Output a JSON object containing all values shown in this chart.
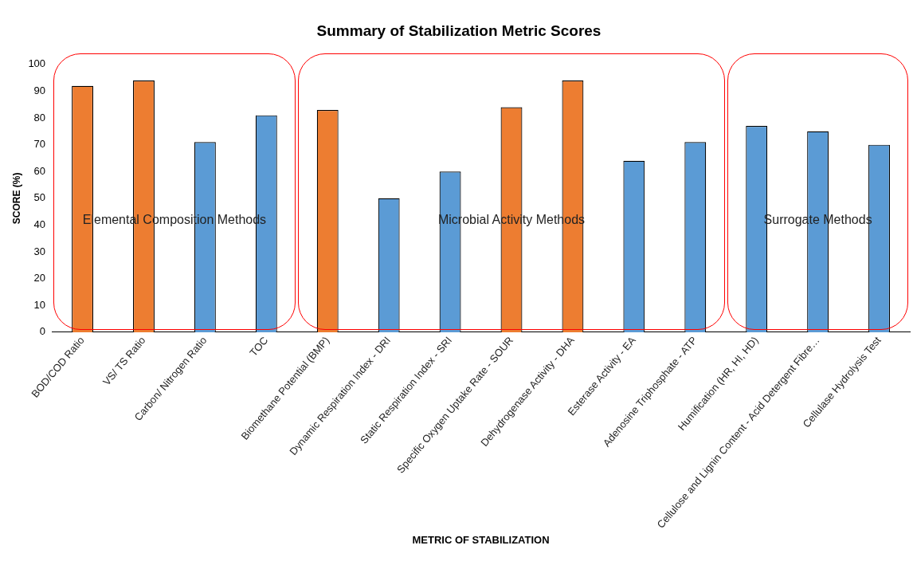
{
  "chart_data": {
    "type": "bar",
    "title": "Summary of Stabilization Metric Scores",
    "xlabel": "METRIC OF STABILIZATION",
    "ylabel": "SCORE (%)",
    "categories": [
      "BOD/COD Ratio",
      "VS/ TS Ratio",
      "Carbon/ Nitrogen Ratio",
      "TOC",
      "Biomethane Potential (BMP)",
      "Dynamic Respiration Index - DRI",
      "Static Respiration Index - SRI",
      "Specific Oxygen Uptake Rate - SOUR",
      "Dehydrogenase Activity - DHA",
      "Esterase Activity - EA",
      "Adenosine Triphosphate - ATP",
      "Humification (HR, HI, HD)",
      "Cellulose and Lignin Content - Acid Detergent Fibre…",
      "Cellulase Hydrolysis Test"
    ],
    "values": [
      92,
      94,
      71,
      81,
      83,
      50,
      60,
      84,
      94,
      64,
      71,
      77,
      75,
      70
    ],
    "colors": [
      "#ed7d31",
      "#ed7d31",
      "#5b9bd5",
      "#5b9bd5",
      "#ed7d31",
      "#5b9bd5",
      "#5b9bd5",
      "#ed7d31",
      "#ed7d31",
      "#5b9bd5",
      "#5b9bd5",
      "#5b9bd5",
      "#5b9bd5",
      "#5b9bd5"
    ],
    "ylim": [
      0,
      100
    ],
    "yticks": [
      0,
      10,
      20,
      30,
      40,
      50,
      60,
      70,
      80,
      90,
      100
    ],
    "annotations": [
      "Elemental Composition Methods",
      "Microbial Activity Methods",
      "Surrogate Methods"
    ],
    "grid": false,
    "legend": false
  }
}
